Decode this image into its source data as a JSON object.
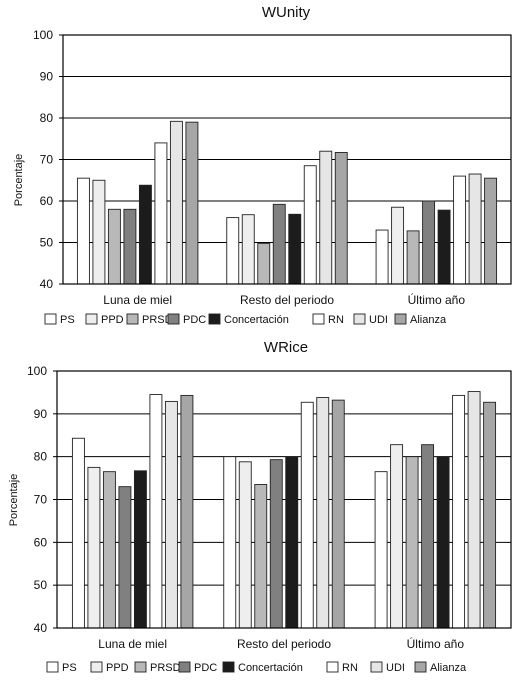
{
  "chart_data": [
    {
      "type": "bar",
      "title": "WUnity",
      "xlabel": "",
      "ylabel": "Porcentaje",
      "ylim": [
        40,
        100
      ],
      "yticks": [
        40,
        50,
        60,
        70,
        80,
        90,
        100
      ],
      "grid": true,
      "legend_position": "bottom",
      "categories": [
        "Luna de miel",
        "Resto del periodo",
        "Último año"
      ],
      "series": [
        {
          "name": "PS",
          "color": "#ffffff",
          "values": [
            65.5,
            56,
            53
          ]
        },
        {
          "name": "PPD",
          "color": "#eeeeee",
          "values": [
            65,
            56.7,
            58.5
          ]
        },
        {
          "name": "PRSD",
          "color": "#b8b8b8",
          "values": [
            58,
            49.8,
            52.8
          ]
        },
        {
          "name": "PDC",
          "color": "#808080",
          "values": [
            58,
            59.2,
            60
          ]
        },
        {
          "name": "Concertación",
          "color": "#1c1c1c",
          "values": [
            63.8,
            56.8,
            57.8
          ]
        },
        {
          "name": "RN",
          "color": "#ffffff",
          "values": [
            74,
            68.5,
            66
          ]
        },
        {
          "name": "UDI",
          "color": "#e6e6e6",
          "values": [
            79.2,
            72,
            66.5
          ]
        },
        {
          "name": "Alianza",
          "color": "#a6a6a6",
          "values": [
            79,
            71.7,
            65.5
          ]
        }
      ]
    },
    {
      "type": "bar",
      "title": "WRice",
      "xlabel": "",
      "ylabel": "Porcentaje",
      "ylim": [
        40,
        100
      ],
      "yticks": [
        40,
        50,
        60,
        70,
        80,
        90,
        100
      ],
      "grid": true,
      "legend_position": "bottom",
      "categories": [
        "Luna de miel",
        "Resto del periodo",
        "Último año"
      ],
      "series": [
        {
          "name": "PS",
          "color": "#ffffff",
          "values": [
            84.3,
            80,
            76.5
          ]
        },
        {
          "name": "PPD",
          "color": "#eeeeee",
          "values": [
            77.5,
            78.8,
            82.8
          ]
        },
        {
          "name": "PRSD",
          "color": "#b8b8b8",
          "values": [
            76.5,
            73.5,
            80
          ]
        },
        {
          "name": "PDC",
          "color": "#808080",
          "values": [
            73,
            79.3,
            82.8
          ]
        },
        {
          "name": "Concertación",
          "color": "#1c1c1c",
          "values": [
            76.7,
            80,
            80
          ]
        },
        {
          "name": "RN",
          "color": "#ffffff",
          "values": [
            94.5,
            92.7,
            94.3
          ]
        },
        {
          "name": "UDI",
          "color": "#e6e6e6",
          "values": [
            92.9,
            93.8,
            95.2
          ]
        },
        {
          "name": "Alianza",
          "color": "#a6a6a6",
          "values": [
            94.3,
            93.2,
            92.7
          ]
        }
      ]
    }
  ]
}
